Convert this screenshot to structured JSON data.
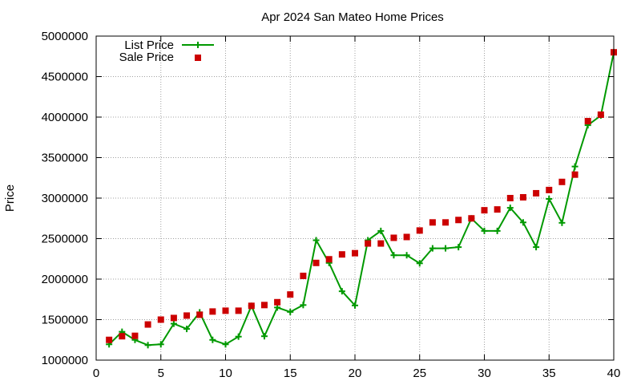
{
  "chart_data": {
    "type": "line",
    "title": "Apr 2024 San Mateo Home Prices",
    "xlabel": "",
    "ylabel": "Price",
    "xlim": [
      0,
      40
    ],
    "ylim": [
      1000000,
      5000000
    ],
    "xticks": [
      0,
      5,
      10,
      15,
      20,
      25,
      30,
      35,
      40
    ],
    "yticks": [
      1000000,
      1500000,
      2000000,
      2500000,
      3000000,
      3500000,
      4000000,
      4500000,
      5000000
    ],
    "grid": true,
    "legend_position": "top-left",
    "series": [
      {
        "name": "List Price",
        "style": "line-plus",
        "color": "#009900",
        "x": [
          1,
          2,
          3,
          4,
          5,
          6,
          7,
          8,
          9,
          10,
          11,
          12,
          13,
          14,
          15,
          16,
          17,
          18,
          19,
          20,
          21,
          22,
          23,
          24,
          25,
          26,
          27,
          28,
          29,
          30,
          31,
          32,
          33,
          34,
          35,
          36,
          37,
          38,
          39,
          40
        ],
        "values": [
          1195000,
          1350000,
          1250000,
          1185000,
          1195000,
          1450000,
          1385000,
          1590000,
          1250000,
          1195000,
          1290000,
          1670000,
          1295000,
          1650000,
          1595000,
          1680000,
          2480000,
          2200000,
          1850000,
          1675000,
          2480000,
          2595000,
          2295000,
          2295000,
          2195000,
          2380000,
          2380000,
          2395000,
          2750000,
          2595000,
          2595000,
          2880000,
          2700000,
          2395000,
          2990000,
          2695000,
          3390000,
          3900000,
          4020000,
          4800000
        ]
      },
      {
        "name": "Sale Price",
        "style": "square",
        "color": "#cc0000",
        "x": [
          1,
          2,
          3,
          4,
          5,
          6,
          7,
          8,
          9,
          10,
          11,
          12,
          13,
          14,
          15,
          16,
          17,
          18,
          19,
          20,
          21,
          22,
          23,
          24,
          25,
          26,
          27,
          28,
          29,
          30,
          31,
          32,
          33,
          34,
          35,
          36,
          37,
          38,
          39,
          40
        ],
        "values": [
          1250000,
          1295000,
          1300000,
          1440000,
          1500000,
          1520000,
          1550000,
          1560000,
          1600000,
          1610000,
          1610000,
          1670000,
          1680000,
          1715000,
          1810000,
          2040000,
          2200000,
          2245000,
          2305000,
          2320000,
          2440000,
          2440000,
          2510000,
          2520000,
          2600000,
          2700000,
          2700000,
          2730000,
          2750000,
          2850000,
          2860000,
          3000000,
          3010000,
          3060000,
          3100000,
          3200000,
          3290000,
          3950000,
          4030000,
          4800000
        ]
      }
    ]
  }
}
